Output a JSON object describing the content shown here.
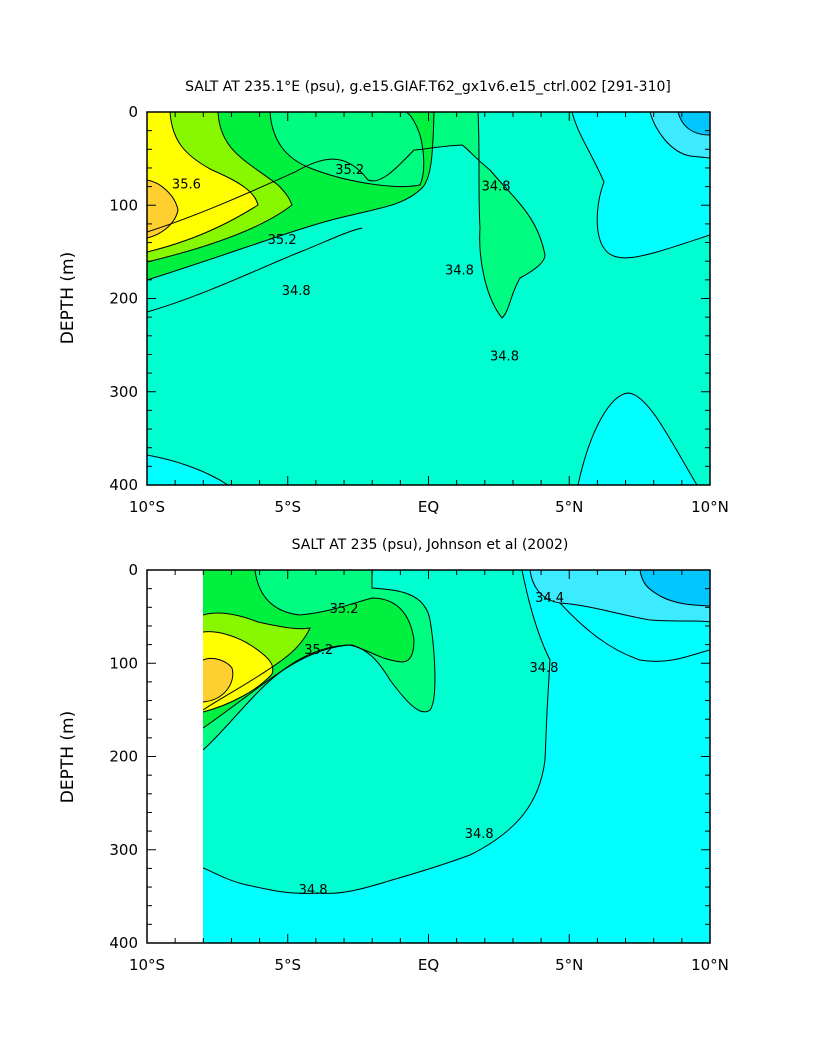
{
  "colors": {
    "s_34_0": "#00c8ff",
    "s_34_4": "#3cebff",
    "s_34_6": "#00ffff",
    "s_34_8": "#00ffd0",
    "s_35_0": "#00fc80",
    "s_35_2": "#00f040",
    "s_35_4": "#88f800",
    "s_35_6": "#ffff00",
    "s_35_8": "#fdd030"
  },
  "chart_data": [
    {
      "type": "contour",
      "title": "SALT AT 235.1°E (psu), g.e15.GIAF.T62_gx1v6.e15_ctrl.002 [291-310]",
      "xlabel": "",
      "ylabel": "DEPTH (m)",
      "x_ticks": [
        "10°S",
        "5°S",
        "EQ",
        "5°N",
        "10°N"
      ],
      "x_tick_values": [
        -10,
        -5,
        0,
        5,
        10
      ],
      "y_ticks": [
        "0",
        "100",
        "200",
        "300",
        "400"
      ],
      "y_tick_values": [
        0,
        100,
        200,
        300,
        400
      ],
      "xlim": [
        -10,
        10
      ],
      "ylim": [
        400,
        0
      ],
      "contour_interval": 0.2,
      "contour_labels": [
        {
          "text": "35.6",
          "x": -8.6,
          "y": 78
        },
        {
          "text": "35.2",
          "x": -2.8,
          "y": 62
        },
        {
          "text": "35.2",
          "x": -5.2,
          "y": 137
        },
        {
          "text": "34.8",
          "x": -4.7,
          "y": 192
        },
        {
          "text": "34.8",
          "x": 1.1,
          "y": 170
        },
        {
          "text": "34.8",
          "x": 2.4,
          "y": 80
        },
        {
          "text": "34.8",
          "x": 2.7,
          "y": 262
        }
      ]
    },
    {
      "type": "contour",
      "title": "SALT AT 235 (psu), Johnson et al (2002)",
      "xlabel": "",
      "ylabel": "DEPTH (m)",
      "x_ticks": [
        "10°S",
        "5°S",
        "EQ",
        "5°N",
        "10°N"
      ],
      "x_tick_values": [
        -10,
        -5,
        0,
        5,
        10
      ],
      "y_ticks": [
        "0",
        "100",
        "200",
        "300",
        "400"
      ],
      "y_tick_values": [
        0,
        100,
        200,
        300,
        400
      ],
      "xlim": [
        -10,
        10
      ],
      "ylim": [
        400,
        0
      ],
      "data_start_x": -8,
      "contour_interval": 0.2,
      "contour_labels": [
        {
          "text": "35.2",
          "x": -3.0,
          "y": 42
        },
        {
          "text": "35.2",
          "x": -3.9,
          "y": 86
        },
        {
          "text": "34.4",
          "x": 4.3,
          "y": 30
        },
        {
          "text": "34.8",
          "x": 4.1,
          "y": 105
        },
        {
          "text": "34.8",
          "x": 1.8,
          "y": 283
        },
        {
          "text": "34.8",
          "x": -4.1,
          "y": 343
        }
      ]
    }
  ]
}
